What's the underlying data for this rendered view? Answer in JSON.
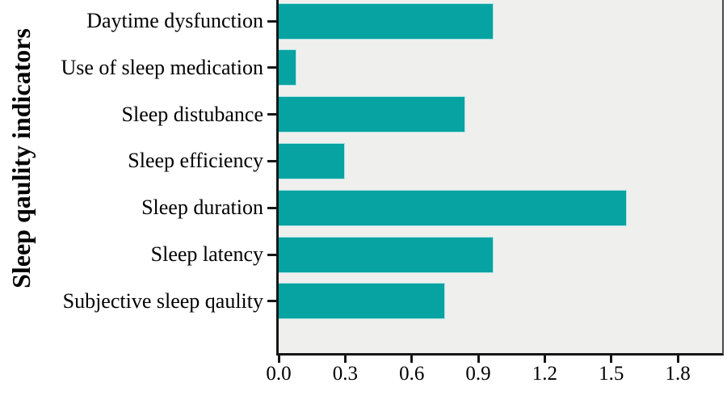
{
  "chart_data": {
    "type": "bar",
    "orientation": "horizontal",
    "title": "",
    "ylabel": "Sleep qaulity indicators",
    "xlabel": "",
    "categories": [
      "Daytime dysfunction",
      "Use of sleep medication",
      "Sleep distubance",
      "Sleep efficiency",
      "Sleep duration",
      "Sleep latency",
      "Subjective sleep qaulity"
    ],
    "values": [
      0.97,
      0.08,
      0.84,
      0.3,
      1.57,
      0.97,
      0.75
    ],
    "x_tick_labels": [
      "0.0",
      "0.3",
      "0.6",
      "0.9",
      "1.2",
      "1.5",
      "1.8"
    ],
    "x_tick_values": [
      0.0,
      0.3,
      0.6,
      0.9,
      1.2,
      1.5,
      1.8
    ],
    "xlim": [
      0,
      2.0
    ],
    "grid": false,
    "legend": false,
    "colors": {
      "bar_fill": "#06a3a2",
      "bar_edge": "#aee4e3",
      "plot_background": "#efefee",
      "axis_line": "#161616",
      "frame_right": "#4a4a4a",
      "text": "#000000"
    }
  }
}
